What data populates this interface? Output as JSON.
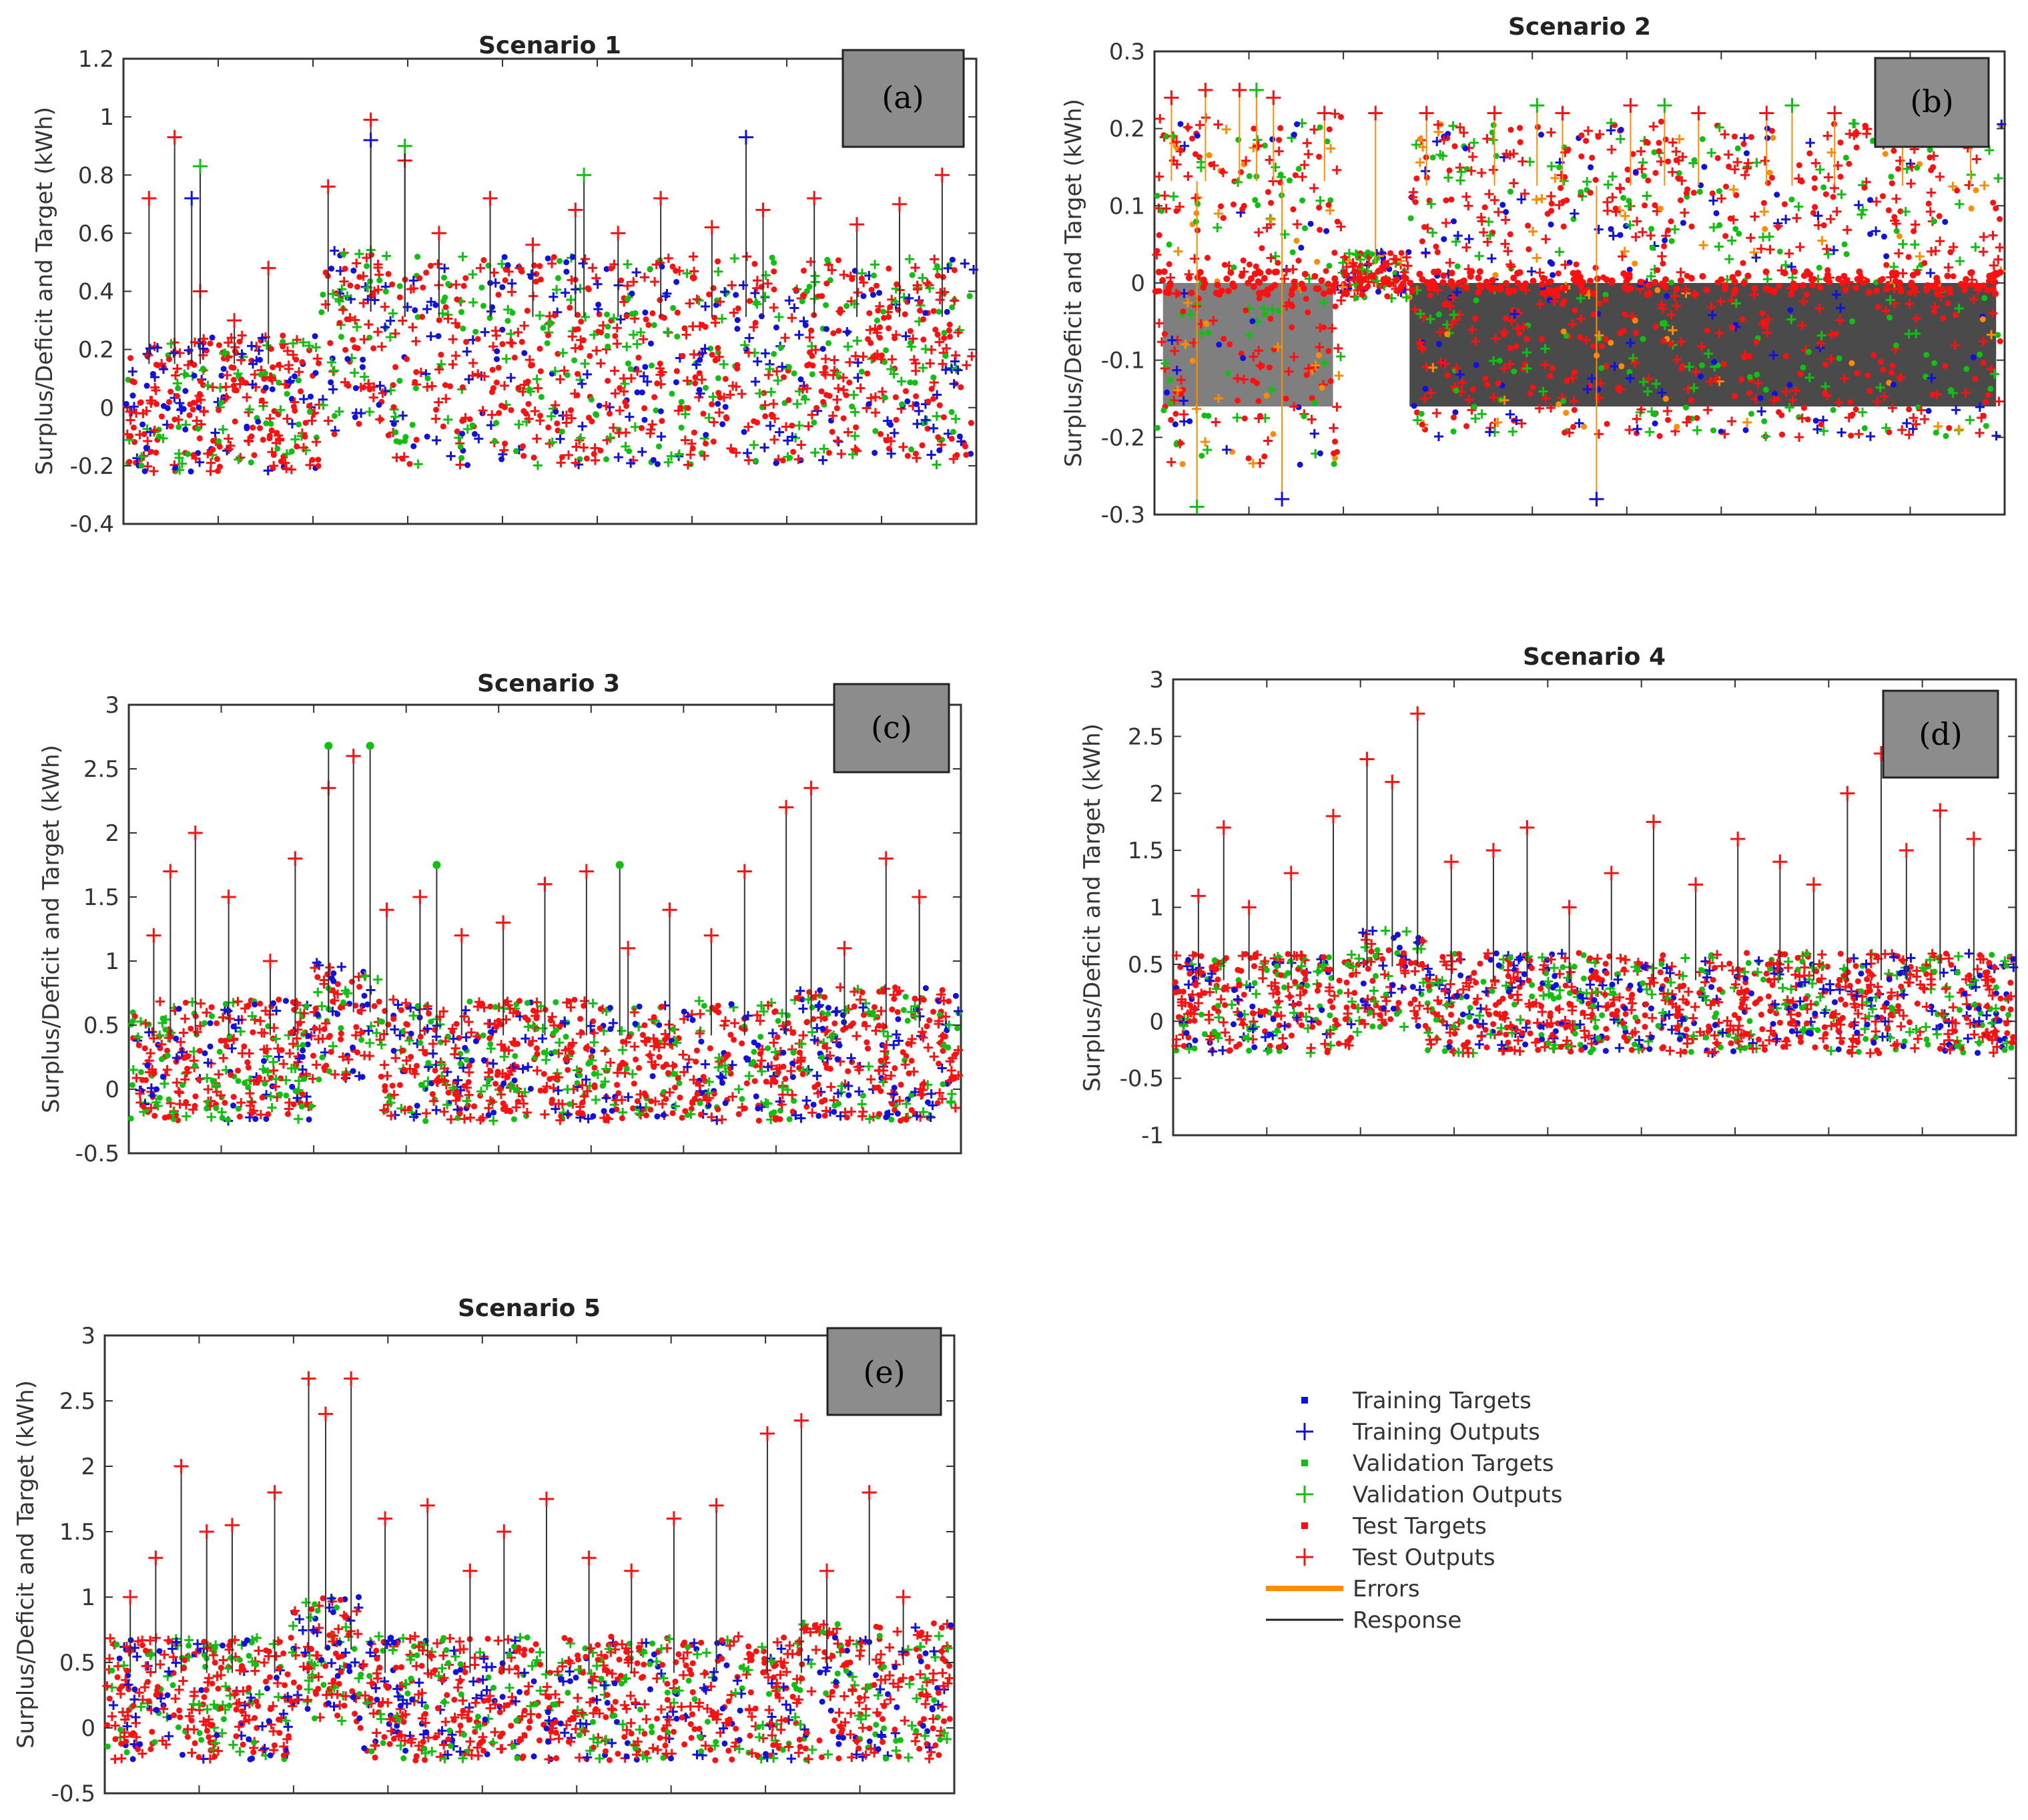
{
  "colors": {
    "training": "#1010e0",
    "validation": "#10c010",
    "test": "#ff1010",
    "errors": "#ff8c00",
    "response": "#222222",
    "tag_bg": "#8c8c8c"
  },
  "legend": {
    "items": [
      {
        "label": "Training Targets",
        "kind": "dot",
        "color": "#1010e0"
      },
      {
        "label": "Training Outputs",
        "kind": "plus",
        "color": "#1010e0"
      },
      {
        "label": "Validation Targets",
        "kind": "dot",
        "color": "#10c010"
      },
      {
        "label": "Validation Outputs",
        "kind": "plus",
        "color": "#10c010"
      },
      {
        "label": "Test Targets",
        "kind": "dot",
        "color": "#ff1010"
      },
      {
        "label": "Test Outputs",
        "kind": "plus",
        "color": "#ff1010"
      },
      {
        "label": "Errors",
        "kind": "thick-line",
        "color": "#ff8c00"
      },
      {
        "label": "Response",
        "kind": "thin-line",
        "color": "#222222"
      }
    ]
  },
  "chart_data": [
    {
      "type": "scatter",
      "tag": "(a)",
      "title": "Scenario 1",
      "xlabel": "",
      "ylabel": "Surplus/Deficit and Target (kWh)",
      "ylim": [
        -0.4,
        1.2
      ],
      "yticks": [
        "-0.4",
        "-0.2",
        "0",
        "0.2",
        "0.4",
        "0.6",
        "0.8",
        "1",
        "1.2"
      ],
      "series": [
        {
          "name": "Test Outputs",
          "x": [
            0.03,
            0.06,
            0.09,
            0.13,
            0.17,
            0.24,
            0.29,
            0.33,
            0.37,
            0.43,
            0.48,
            0.53,
            0.58,
            0.63,
            0.69,
            0.75,
            0.81,
            0.86,
            0.91,
            0.96
          ],
          "values": [
            0.72,
            0.93,
            0.4,
            0.3,
            0.48,
            0.76,
            0.99,
            0.85,
            0.6,
            0.72,
            0.56,
            0.68,
            0.6,
            0.72,
            0.62,
            0.68,
            0.72,
            0.63,
            0.7,
            0.8
          ]
        },
        {
          "name": "Training Outputs",
          "x": [
            0.08,
            0.29,
            0.73
          ],
          "values": [
            0.72,
            0.92,
            0.93
          ]
        },
        {
          "name": "Validation Outputs",
          "x": [
            0.09,
            0.33,
            0.54
          ],
          "values": [
            0.83,
            0.9,
            0.8
          ]
        }
      ]
    },
    {
      "type": "scatter",
      "tag": "(b)",
      "title": "Scenario 2",
      "xlabel": "",
      "ylabel": "Surplus/Deficit and Target (kWh)",
      "ylim": [
        -0.3,
        0.3
      ],
      "yticks": [
        "-0.3",
        "-0.2",
        "-0.1",
        "0",
        "0.1",
        "0.2",
        "0.3"
      ],
      "series": [
        {
          "name": "Test Outputs",
          "x": [
            0.02,
            0.06,
            0.1,
            0.14,
            0.2,
            0.26,
            0.32,
            0.4,
            0.48,
            0.56,
            0.64,
            0.72,
            0.8,
            0.88,
            0.96
          ],
          "values": [
            0.24,
            0.25,
            0.25,
            0.24,
            0.22,
            0.22,
            0.22,
            0.22,
            0.22,
            0.23,
            0.22,
            0.22,
            0.22,
            0.22,
            0.2
          ]
        },
        {
          "name": "Validation Outputs",
          "x": [
            0.05,
            0.12,
            0.45,
            0.6,
            0.75
          ],
          "values": [
            -0.29,
            0.25,
            0.23,
            0.23,
            0.23
          ]
        },
        {
          "name": "Training Outputs",
          "x": [
            0.15,
            0.52
          ],
          "values": [
            -0.28,
            -0.28
          ]
        }
      ]
    },
    {
      "type": "scatter",
      "tag": "(c)",
      "title": "Scenario 3",
      "xlabel": "",
      "ylabel": "Surplus/Deficit and Target (kWh)",
      "ylim": [
        -0.5,
        3
      ],
      "yticks": [
        "-0.5",
        "0",
        "0.5",
        "1",
        "1.5",
        "2",
        "2.5",
        "3"
      ],
      "series": [
        {
          "name": "Test Outputs",
          "x": [
            0.03,
            0.05,
            0.08,
            0.12,
            0.17,
            0.2,
            0.24,
            0.27,
            0.31,
            0.35,
            0.4,
            0.45,
            0.5,
            0.55,
            0.6,
            0.65,
            0.7,
            0.74,
            0.79,
            0.82,
            0.86,
            0.91,
            0.95
          ],
          "values": [
            1.2,
            1.7,
            2.0,
            1.5,
            1.0,
            1.8,
            2.35,
            2.6,
            1.4,
            1.5,
            1.2,
            1.3,
            1.6,
            1.7,
            1.1,
            1.4,
            1.2,
            1.7,
            2.2,
            2.35,
            1.1,
            1.8,
            1.5
          ]
        },
        {
          "name": "Validation Targets",
          "x": [
            0.24,
            0.29,
            0.37,
            0.59
          ],
          "values": [
            2.68,
            2.68,
            1.75,
            1.75
          ]
        }
      ]
    },
    {
      "type": "scatter",
      "tag": "(d)",
      "title": "Scenario 4",
      "xlabel": "",
      "ylabel": "Surplus/Deficit and Target (kWh)",
      "ylim": [
        -1,
        3
      ],
      "yticks": [
        "-1",
        "-0.5",
        "0",
        "0.5",
        "1",
        "1.5",
        "2",
        "2.5",
        "3"
      ],
      "series": [
        {
          "name": "Test Outputs",
          "x": [
            0.03,
            0.06,
            0.09,
            0.14,
            0.19,
            0.23,
            0.26,
            0.29,
            0.33,
            0.38,
            0.42,
            0.47,
            0.52,
            0.57,
            0.62,
            0.67,
            0.72,
            0.76,
            0.8,
            0.84,
            0.87,
            0.91,
            0.95
          ],
          "values": [
            1.1,
            1.7,
            1.0,
            1.3,
            1.8,
            2.3,
            2.1,
            2.7,
            1.4,
            1.5,
            1.7,
            1.0,
            1.3,
            1.75,
            1.2,
            1.6,
            1.4,
            1.2,
            2.0,
            2.35,
            1.5,
            1.85,
            1.6
          ]
        }
      ]
    },
    {
      "type": "scatter",
      "tag": "(e)",
      "title": "Scenario 5",
      "xlabel": "",
      "ylabel": "Surplus/Deficit and Target (kWh)",
      "ylim": [
        -0.5,
        3
      ],
      "yticks": [
        "-0.5",
        "0",
        "0.5",
        "1",
        "1.5",
        "2",
        "2.5",
        "3"
      ],
      "series": [
        {
          "name": "Test Outputs",
          "x": [
            0.03,
            0.06,
            0.09,
            0.12,
            0.15,
            0.2,
            0.24,
            0.26,
            0.29,
            0.33,
            0.38,
            0.43,
            0.47,
            0.52,
            0.57,
            0.62,
            0.67,
            0.72,
            0.78,
            0.82,
            0.85,
            0.9,
            0.94
          ],
          "values": [
            1.0,
            1.3,
            2.0,
            1.5,
            1.55,
            1.8,
            2.67,
            2.4,
            2.67,
            1.6,
            1.7,
            1.2,
            1.5,
            1.75,
            1.3,
            1.2,
            1.6,
            1.7,
            2.25,
            2.35,
            1.2,
            1.8,
            1.0
          ]
        }
      ]
    }
  ]
}
